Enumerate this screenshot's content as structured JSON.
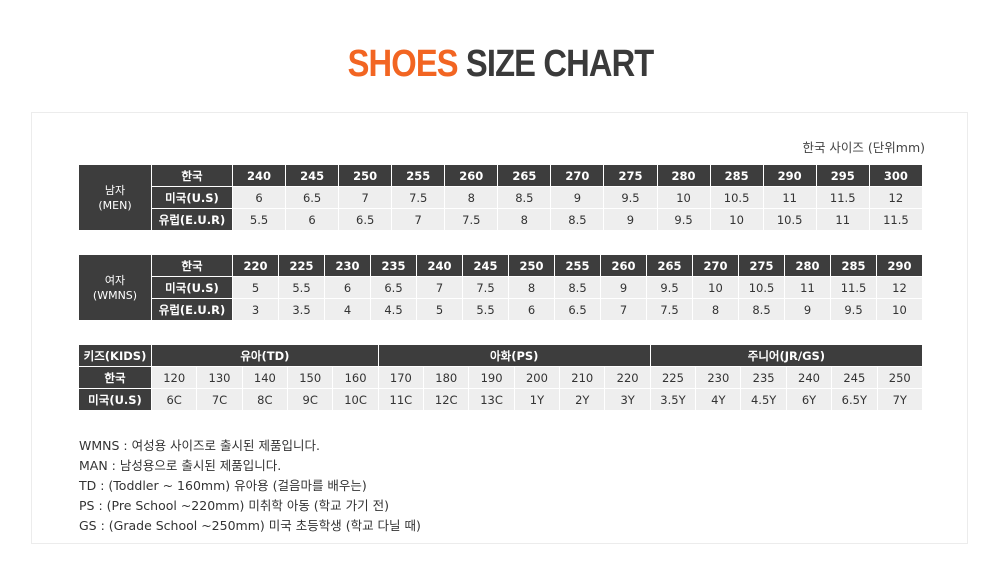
{
  "title": {
    "accent": "SHOES",
    "rest": "SIZE CHART"
  },
  "unit_note": "한국 사이즈 (단위mm)",
  "men": {
    "group_label": "남자",
    "group_sub": "(MEN)",
    "row_labels": [
      "한국",
      "미국(U.S)",
      "유럽(E.U.R)"
    ],
    "kr": [
      "240",
      "245",
      "250",
      "255",
      "260",
      "265",
      "270",
      "275",
      "280",
      "285",
      "290",
      "295",
      "300"
    ],
    "us": [
      "6",
      "6.5",
      "7",
      "7.5",
      "8",
      "8.5",
      "9",
      "9.5",
      "10",
      "10.5",
      "11",
      "11.5",
      "12"
    ],
    "eur": [
      "5.5",
      "6",
      "6.5",
      "7",
      "7.5",
      "8",
      "8.5",
      "9",
      "9.5",
      "10",
      "10.5",
      "11",
      "11.5"
    ]
  },
  "women": {
    "group_label": "여자",
    "group_sub": "(WMNS)",
    "row_labels": [
      "한국",
      "미국(U.S)",
      "유럽(E.U.R)"
    ],
    "kr": [
      "220",
      "225",
      "230",
      "235",
      "240",
      "245",
      "250",
      "255",
      "260",
      "265",
      "270",
      "275",
      "280",
      "285",
      "290"
    ],
    "us": [
      "5",
      "5.5",
      "6",
      "6.5",
      "7",
      "7.5",
      "8",
      "8.5",
      "9",
      "9.5",
      "10",
      "10.5",
      "11",
      "11.5",
      "12"
    ],
    "eur": [
      "3",
      "3.5",
      "4",
      "4.5",
      "5",
      "5.5",
      "6",
      "6.5",
      "7",
      "7.5",
      "8",
      "8.5",
      "9",
      "9.5",
      "10"
    ]
  },
  "kids": {
    "corner_label": "키즈(KIDS)",
    "row_labels": [
      "한국",
      "미국(U.S)"
    ],
    "groups": [
      {
        "label": "유아(TD)",
        "span": 5
      },
      {
        "label": "아화(PS)",
        "span": 6
      },
      {
        "label": "주니어(JR/GS)",
        "span": 6
      }
    ],
    "kr": [
      "120",
      "130",
      "140",
      "150",
      "160",
      "170",
      "180",
      "190",
      "200",
      "210",
      "220",
      "225",
      "230",
      "235",
      "240",
      "245",
      "250"
    ],
    "us": [
      "6C",
      "7C",
      "8C",
      "9C",
      "10C",
      "11C",
      "12C",
      "13C",
      "1Y",
      "2Y",
      "3Y",
      "3.5Y",
      "4Y",
      "4.5Y",
      "6Y",
      "6.5Y",
      "7Y"
    ]
  },
  "notes": [
    "WMNS : 여성용 사이즈로 출시된 제품입니다.",
    "MAN : 남성용으로 출시된 제품입니다.",
    "TD : (Toddler ~ 160mm) 유아용 (걸음마를 배우는)",
    "PS : (Pre School ~220mm) 미취학 아동 (학교 가기 전)",
    "GS : (Grade School ~250mm) 미국 초등학생 (학교 다닐 때)"
  ]
}
